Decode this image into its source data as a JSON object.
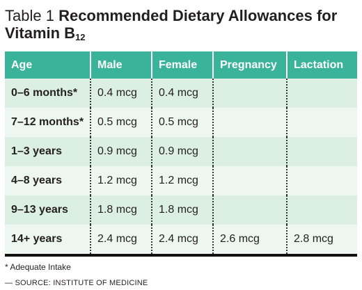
{
  "title": {
    "prefix": "Table 1",
    "main": "Recommended Dietary Allowances for",
    "vitamin": "Vitamin B",
    "subscript": "12"
  },
  "table": {
    "headers": [
      "Age",
      "Male",
      "Female",
      "Pregnancy",
      "Lactation"
    ],
    "rows": [
      [
        "0–6 months*",
        "0.4 mcg",
        "0.4 mcg",
        null,
        null
      ],
      [
        "7–12 months*",
        "0.5 mcg",
        "0.5 mcg",
        null,
        null
      ],
      [
        "1–3 years",
        "0.9 mcg",
        "0.9 mcg",
        null,
        null
      ],
      [
        "4–8 years",
        "1.2 mcg",
        "1.2 mcg",
        null,
        null
      ],
      [
        "9–13 years",
        "1.8 mcg",
        "1.8 mcg",
        null,
        null
      ],
      [
        "14+ years",
        "2.4 mcg",
        "2.4 mcg",
        "2.6 mcg",
        "2.8 mcg"
      ]
    ]
  },
  "footnote": "* Adequate Intake",
  "source": "— SOURCE: INSTITUTE OF MEDICINE"
}
